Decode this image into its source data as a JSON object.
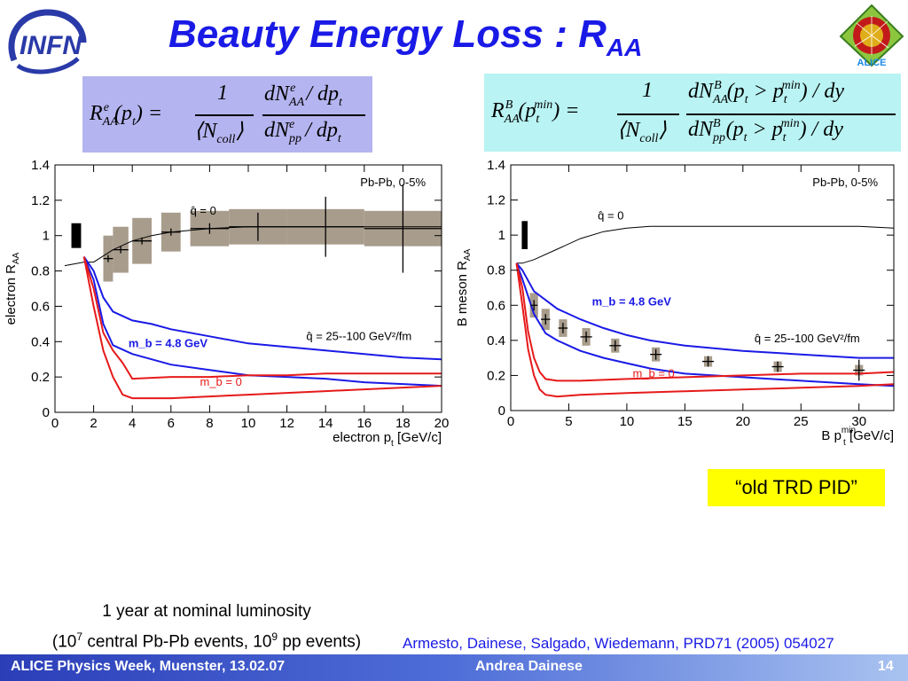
{
  "slide": {
    "title_main": "Beauty Energy Loss : R",
    "title_sub": "AA",
    "formula_left_lhs": "R",
    "formula_right_lhs": "R",
    "note_box": "“old TRD PID”",
    "bottom_note_line1": "1 year at nominal luminosity",
    "bottom_note_line2a": "(10",
    "bottom_note_sup1": "7",
    "bottom_note_line2b": " central Pb-Pb events, 10",
    "bottom_note_sup2": "9",
    "bottom_note_line2c": " pp events)",
    "reference": "Armesto, Dainese, Salgado, Wiedemann, PRD71 (2005) 054027",
    "footer_left": "ALICE Physics Week, Muenster, 13.02.07",
    "footer_center": "Andrea Dainese",
    "footer_right": "14"
  },
  "colors": {
    "title": "#1a1ae6",
    "massive_curve": "#1a1ae6",
    "massless_curve": "#e61a1a",
    "band": "#a89c8c"
  },
  "chart_data": [
    {
      "type": "line",
      "ylabel": "electron R",
      "ylabel_sub": "AA",
      "xlabel": "electron p",
      "xlabel_sub": "t",
      "xlabel_unit": " [GeV/c]",
      "xlim": [
        0,
        20
      ],
      "ylim": [
        0,
        1.4
      ],
      "xticks": [
        0,
        2,
        4,
        6,
        8,
        10,
        12,
        14,
        16,
        18,
        20
      ],
      "yticks": [
        0,
        0.2,
        0.4,
        0.6,
        0.8,
        1,
        1.2,
        1.4
      ],
      "yticklabels": [
        "0",
        "0.2",
        "0.4",
        "0.6",
        "0.8",
        "1",
        "1.2",
        "1.4"
      ],
      "system_label": "Pb-Pb, 0-5%",
      "annotations": [
        {
          "text": "q̂ = 0",
          "x": 7.0,
          "y": 1.12,
          "color": "#000"
        },
        {
          "text": "q̂ = 25--100 GeV²/fm",
          "x": 13,
          "y": 0.41,
          "color": "#000"
        },
        {
          "text": "m_b = 4.8 GeV",
          "x": 3.8,
          "y": 0.37,
          "color": "#1a1ae6"
        },
        {
          "text": "m_b = 0",
          "x": 7.5,
          "y": 0.15,
          "color": "#e61a1a"
        }
      ],
      "series": [
        {
          "name": "q̂ = 0",
          "color": "#000",
          "x": [
            0.5,
            1.5,
            2,
            3,
            4,
            5,
            6,
            7,
            8,
            10,
            12,
            15,
            18,
            20
          ],
          "y": [
            0.83,
            0.85,
            0.85,
            0.92,
            0.97,
            1.0,
            1.02,
            1.03,
            1.04,
            1.05,
            1.05,
            1.05,
            1.05,
            1.05
          ]
        },
        {
          "name": "m_b = 4.8 GeV",
          "color": "#1a1ae6",
          "x": [
            1.5,
            2,
            2.5,
            3,
            4,
            5,
            6,
            8,
            10,
            12,
            14,
            16,
            18,
            20
          ],
          "y": [
            0.88,
            0.8,
            0.65,
            0.57,
            0.52,
            0.5,
            0.47,
            0.43,
            0.39,
            0.37,
            0.35,
            0.33,
            0.31,
            0.3
          ]
        },
        {
          "name": "m_b = 4.8 GeV",
          "color": "#1a1ae6",
          "x": [
            1.5,
            2,
            2.5,
            3,
            4,
            5,
            6,
            8,
            10,
            12,
            14,
            16,
            18,
            20
          ],
          "y": [
            0.88,
            0.75,
            0.5,
            0.38,
            0.33,
            0.3,
            0.27,
            0.24,
            0.21,
            0.2,
            0.19,
            0.17,
            0.16,
            0.15
          ]
        },
        {
          "name": "m_b = 0",
          "color": "#e61a1a",
          "x": [
            1.5,
            2,
            2.5,
            3,
            3.5,
            4,
            6,
            8,
            10,
            12,
            14,
            16,
            18,
            20
          ],
          "y": [
            0.88,
            0.7,
            0.45,
            0.35,
            0.28,
            0.19,
            0.2,
            0.2,
            0.21,
            0.21,
            0.22,
            0.22,
            0.22,
            0.22
          ]
        },
        {
          "name": "m_b = 0",
          "color": "#e61a1a",
          "x": [
            1.5,
            2,
            2.5,
            3,
            3.5,
            4,
            6,
            8,
            10,
            12,
            14,
            16,
            18,
            20
          ],
          "y": [
            0.88,
            0.6,
            0.35,
            0.2,
            0.1,
            0.08,
            0.08,
            0.09,
            0.1,
            0.11,
            0.12,
            0.13,
            0.14,
            0.15
          ]
        }
      ],
      "points": [
        {
          "x": 2.75,
          "y": 0.87,
          "ex": 0.25,
          "ey": 0.02,
          "bx": 0.25,
          "by": 0.13
        },
        {
          "x": 3.4,
          "y": 0.92,
          "ex": 0.4,
          "ey": 0.02,
          "bx": 0.4,
          "by": 0.13
        },
        {
          "x": 4.5,
          "y": 0.97,
          "ex": 0.5,
          "ey": 0.02,
          "bx": 0.5,
          "by": 0.13
        },
        {
          "x": 6.0,
          "y": 1.02,
          "ex": 0.5,
          "ey": 0.02,
          "bx": 0.5,
          "by": 0.11
        },
        {
          "x": 8.0,
          "y": 1.04,
          "ex": 1.0,
          "ey": 0.03,
          "bx": 1.0,
          "by": 0.1
        },
        {
          "x": 10.5,
          "y": 1.05,
          "ex": 1.5,
          "ey": 0.08,
          "bx": 1.5,
          "by": 0.1
        },
        {
          "x": 14.0,
          "y": 1.05,
          "ex": 2.0,
          "ey": 0.17,
          "bx": 2.0,
          "by": 0.1
        },
        {
          "x": 18.0,
          "y": 1.04,
          "ex": 2.0,
          "ey": 0.25,
          "bx": 2.0,
          "by": 0.1
        }
      ],
      "norm_box": {
        "x": 1.1,
        "y": 1.0,
        "hw": 0.25,
        "hh": 0.07
      }
    },
    {
      "type": "line",
      "ylabel": "B meson R",
      "ylabel_sub": "AA",
      "xlabel": "B p",
      "xlabel_sub": "t",
      "xlabel_sup": "min",
      "xlabel_unit": " [GeV/c]",
      "xlim": [
        0,
        33
      ],
      "ylim": [
        0,
        1.4
      ],
      "xticks": [
        0,
        5,
        10,
        15,
        20,
        25,
        30
      ],
      "yticks": [
        0,
        0.2,
        0.4,
        0.6,
        0.8,
        1,
        1.2,
        1.4
      ],
      "yticklabels": [
        "0",
        "0.2",
        "0.4",
        "0.6",
        "0.8",
        "1",
        "1.2",
        "1.4"
      ],
      "system_label": "Pb-Pb,  0-5%",
      "annotations": [
        {
          "text": "q̂ = 0",
          "x": 7.5,
          "y": 1.09,
          "color": "#000"
        },
        {
          "text": "m_b = 4.8 GeV",
          "x": 7,
          "y": 0.6,
          "color": "#1a1ae6"
        },
        {
          "text": "q̂ = 25--100 GeV²/fm",
          "x": 21,
          "y": 0.39,
          "color": "#000"
        },
        {
          "text": "m_b = 0",
          "x": 10.5,
          "y": 0.19,
          "color": "#e61a1a"
        }
      ],
      "series": [
        {
          "name": "q̂ = 0",
          "color": "#000",
          "x": [
            0.5,
            1,
            2,
            4,
            6,
            8,
            10,
            12,
            15,
            20,
            25,
            30,
            33
          ],
          "y": [
            0.84,
            0.84,
            0.86,
            0.92,
            0.98,
            1.02,
            1.04,
            1.05,
            1.05,
            1.05,
            1.05,
            1.05,
            1.04
          ]
        },
        {
          "name": "m_b = 4.8 GeV",
          "color": "#1a1ae6",
          "x": [
            0.5,
            1,
            2,
            3,
            4,
            6,
            8,
            10,
            12,
            15,
            20,
            25,
            30,
            33
          ],
          "y": [
            0.84,
            0.8,
            0.68,
            0.63,
            0.58,
            0.52,
            0.47,
            0.43,
            0.4,
            0.37,
            0.34,
            0.32,
            0.3,
            0.3
          ]
        },
        {
          "name": "m_b = 4.8 GeV",
          "color": "#1a1ae6",
          "x": [
            0.5,
            1,
            2,
            3,
            4,
            6,
            8,
            10,
            12,
            15,
            20,
            25,
            30,
            33
          ],
          "y": [
            0.84,
            0.75,
            0.55,
            0.44,
            0.4,
            0.34,
            0.3,
            0.27,
            0.24,
            0.21,
            0.19,
            0.17,
            0.15,
            0.14
          ]
        },
        {
          "name": "m_b = 0",
          "color": "#e61a1a",
          "x": [
            0.5,
            1,
            1.5,
            2,
            2.5,
            3,
            4,
            6,
            10,
            15,
            20,
            25,
            30,
            33
          ],
          "y": [
            0.84,
            0.7,
            0.45,
            0.3,
            0.22,
            0.18,
            0.17,
            0.17,
            0.18,
            0.19,
            0.2,
            0.21,
            0.21,
            0.22
          ]
        },
        {
          "name": "m_b = 0",
          "color": "#e61a1a",
          "x": [
            0.5,
            1,
            1.5,
            2,
            2.5,
            3,
            4,
            6,
            10,
            15,
            20,
            25,
            30,
            33
          ],
          "y": [
            0.84,
            0.6,
            0.35,
            0.2,
            0.12,
            0.09,
            0.08,
            0.09,
            0.1,
            0.11,
            0.12,
            0.13,
            0.14,
            0.15
          ]
        }
      ],
      "points": [
        {
          "x": 2.0,
          "y": 0.6,
          "ex": 0.3,
          "ey": 0.03,
          "bx": 0.35,
          "by": 0.07
        },
        {
          "x": 3.0,
          "y": 0.52,
          "ex": 0.4,
          "ey": 0.03,
          "bx": 0.35,
          "by": 0.06
        },
        {
          "x": 4.5,
          "y": 0.47,
          "ex": 0.4,
          "ey": 0.03,
          "bx": 0.35,
          "by": 0.05
        },
        {
          "x": 6.5,
          "y": 0.42,
          "ex": 0.5,
          "ey": 0.03,
          "bx": 0.35,
          "by": 0.05
        },
        {
          "x": 9.0,
          "y": 0.37,
          "ex": 0.5,
          "ey": 0.03,
          "bx": 0.35,
          "by": 0.04
        },
        {
          "x": 12.5,
          "y": 0.32,
          "ex": 0.5,
          "ey": 0.03,
          "bx": 0.35,
          "by": 0.04
        },
        {
          "x": 17.0,
          "y": 0.28,
          "ex": 0.5,
          "ey": 0.03,
          "bx": 0.35,
          "by": 0.03
        },
        {
          "x": 23.0,
          "y": 0.25,
          "ex": 0.5,
          "ey": 0.03,
          "bx": 0.35,
          "by": 0.03
        },
        {
          "x": 30.0,
          "y": 0.23,
          "ex": 0.5,
          "ey": 0.06,
          "bx": 0.35,
          "by": 0.03
        }
      ],
      "norm_box": {
        "x": 1.2,
        "y": 1.0,
        "hw": 0.25,
        "hh": 0.08
      }
    }
  ]
}
